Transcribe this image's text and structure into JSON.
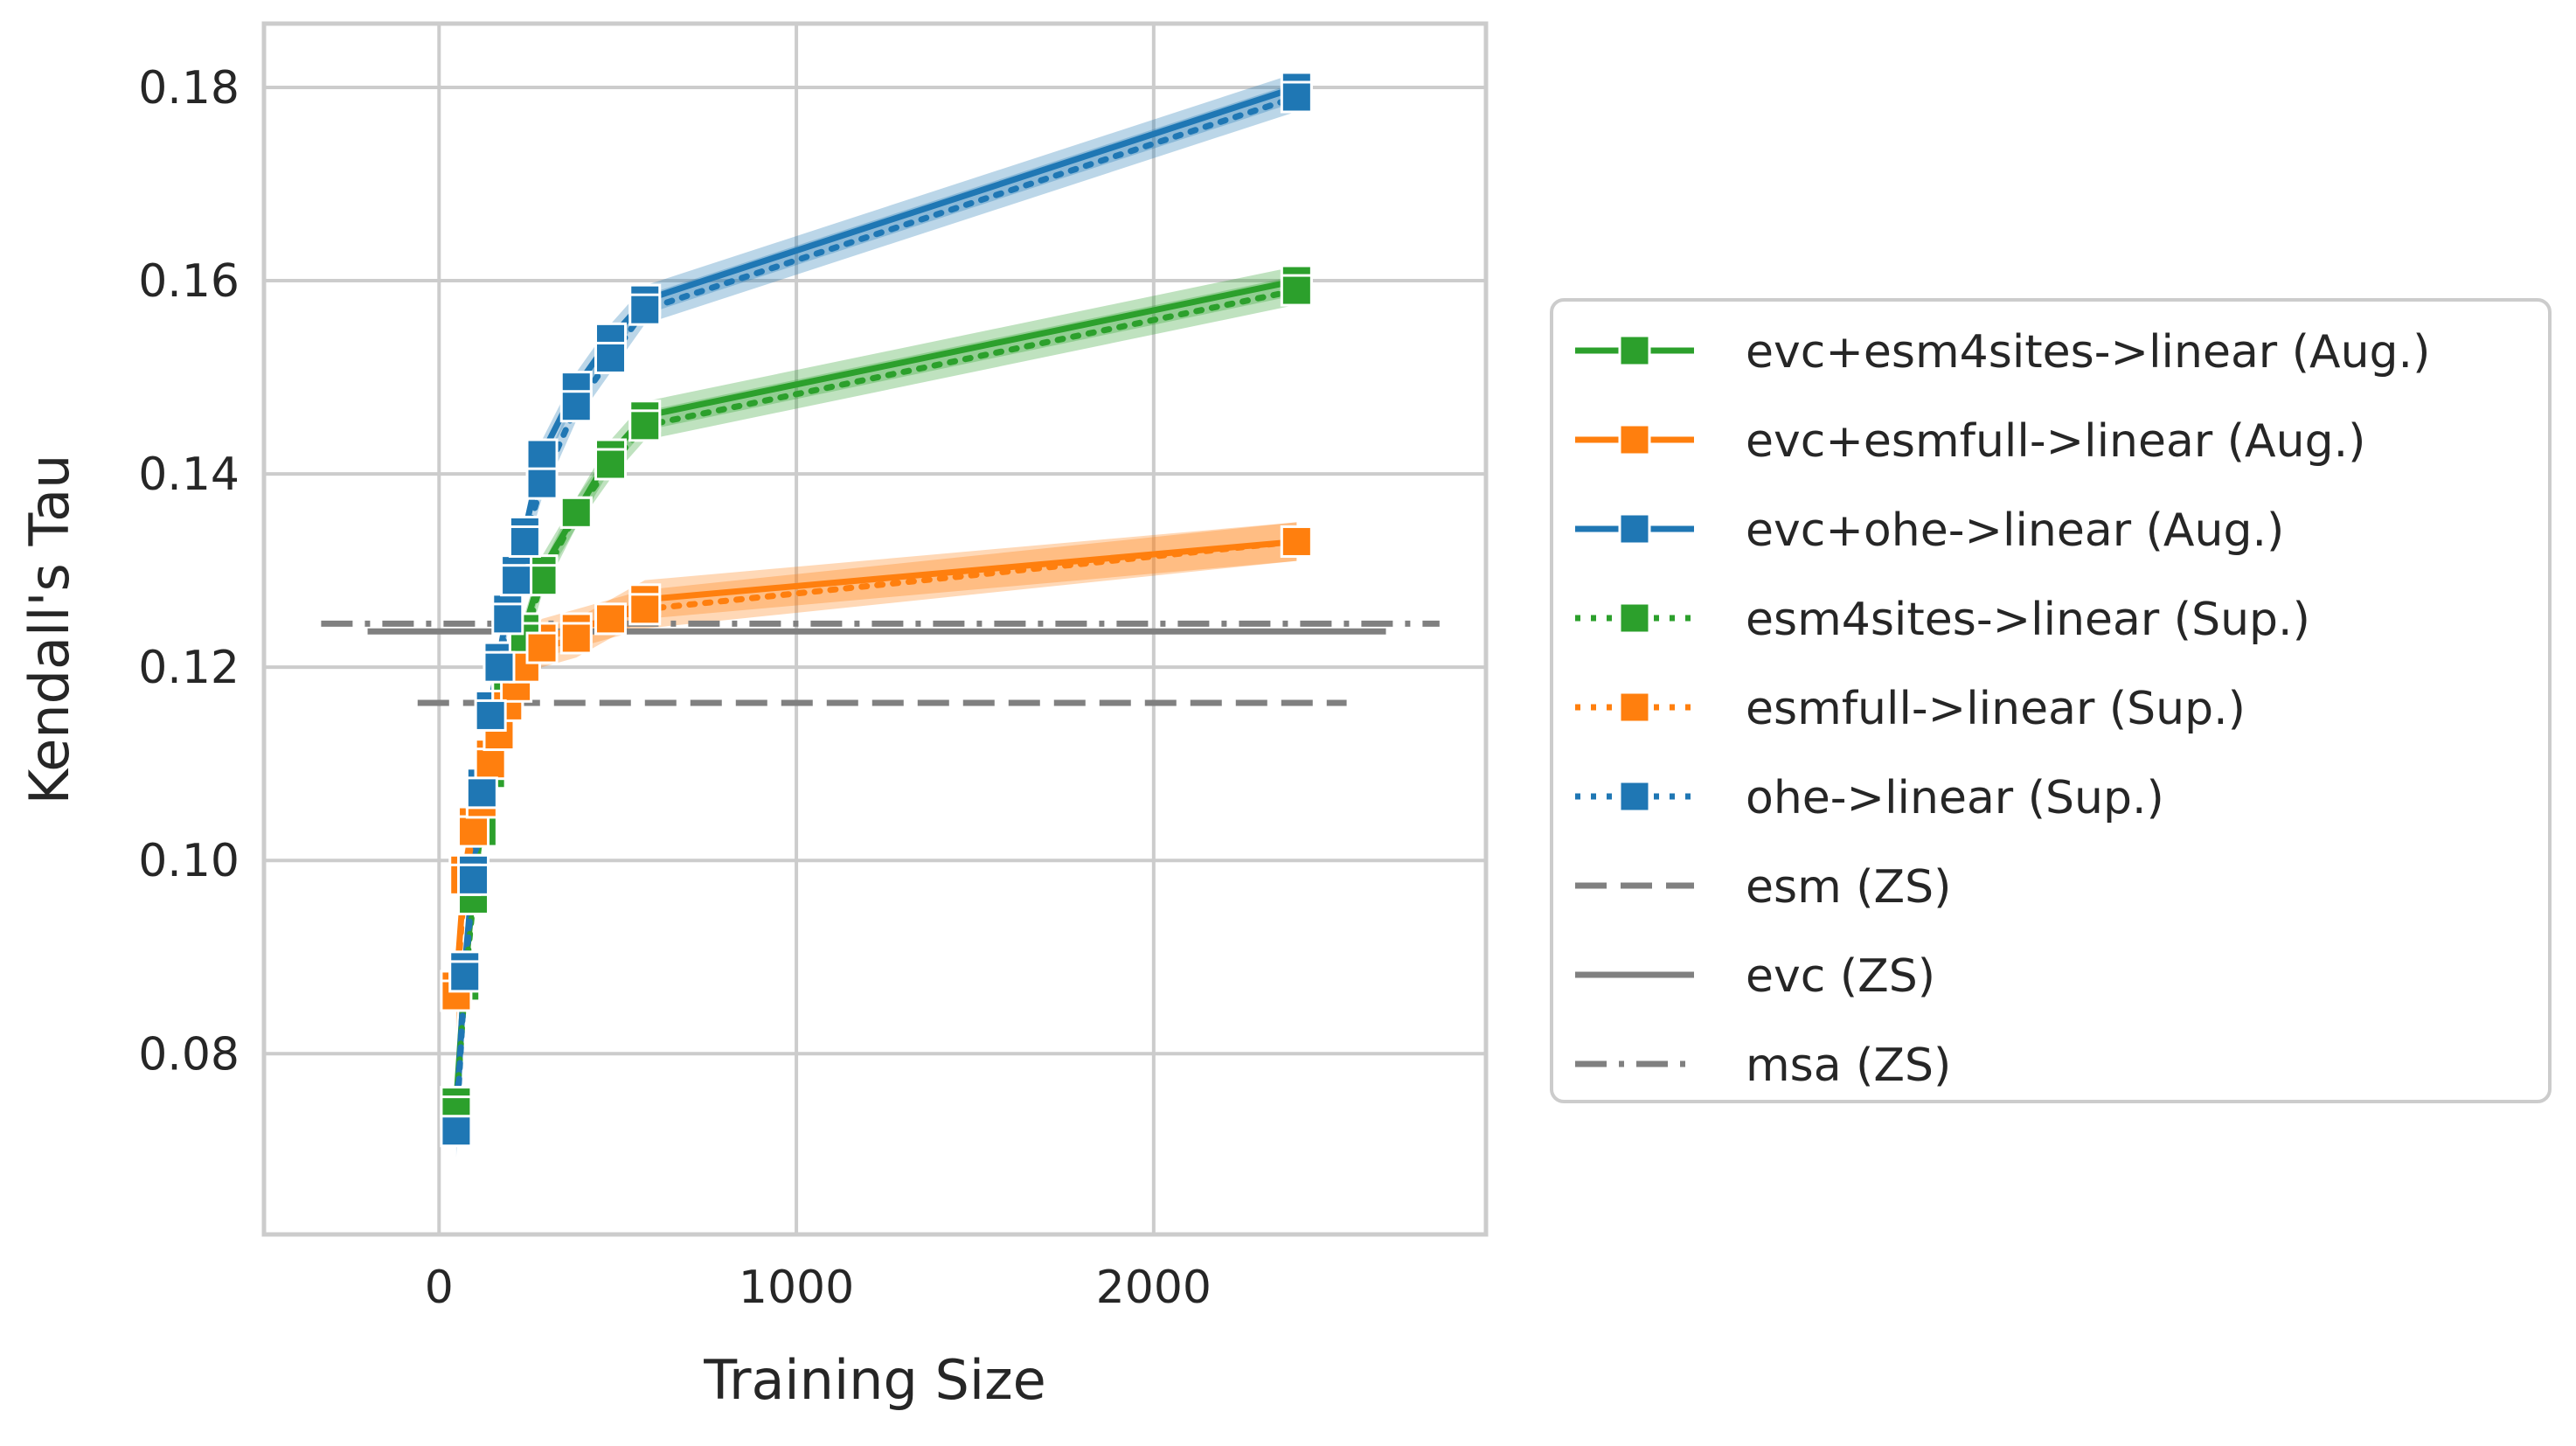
{
  "chart_data": {
    "type": "line",
    "title": "",
    "xlabel": "Training Size",
    "ylabel": "Kendall's Tau",
    "xlim": [
      -490,
      2930
    ],
    "ylim": [
      0.0613,
      0.1866
    ],
    "xticks": [
      0,
      1000,
      2000
    ],
    "yticks": [
      0.08,
      0.1,
      0.12,
      0.14,
      0.16,
      0.18
    ],
    "ytick_labels": [
      "0.08",
      "0.10",
      "0.12",
      "0.14",
      "0.16",
      "0.18"
    ],
    "grid": true,
    "legend_position": "outside-right",
    "series": [
      {
        "name": "evc+esm4sites->linear (Aug.)",
        "color": "#2ca02c",
        "linestyle": "solid",
        "marker": "square",
        "x": [
          48,
          72,
          96,
          120,
          144,
          168,
          192,
          216,
          240,
          288,
          384,
          480,
          576,
          2400
        ],
        "y": [
          0.075,
          0.088,
          0.097,
          0.104,
          0.11,
          0.114,
          0.118,
          0.121,
          0.124,
          0.13,
          0.136,
          0.142,
          0.146,
          0.16
        ],
        "band": 0.0015
      },
      {
        "name": "evc+esmfull->linear (Aug.)",
        "color": "#ff7f0e",
        "linestyle": "solid",
        "marker": "square",
        "x": [
          48,
          72,
          96,
          120,
          144,
          168,
          192,
          216,
          240,
          288,
          384,
          480,
          576,
          2400
        ],
        "y": [
          0.087,
          0.099,
          0.104,
          0.107,
          0.111,
          0.114,
          0.117,
          0.119,
          0.121,
          0.123,
          0.124,
          0.125,
          0.127,
          0.133
        ],
        "band": 0.002
      },
      {
        "name": "evc+ohe->linear (Aug.)",
        "color": "#1f77b4",
        "linestyle": "solid",
        "marker": "square",
        "x": [
          48,
          72,
          96,
          120,
          144,
          168,
          192,
          216,
          240,
          288,
          384,
          480,
          576,
          2400
        ],
        "y": [
          0.073,
          0.089,
          0.099,
          0.108,
          0.116,
          0.121,
          0.126,
          0.13,
          0.134,
          0.142,
          0.149,
          0.154,
          0.158,
          0.18
        ],
        "band": 0.0015
      },
      {
        "name": "esm4sites->linear (Sup.)",
        "color": "#2ca02c",
        "linestyle": "dotted",
        "marker": "square",
        "x": [
          48,
          72,
          96,
          120,
          144,
          168,
          192,
          216,
          240,
          288,
          384,
          480,
          576,
          2400
        ],
        "y": [
          0.074,
          0.087,
          0.096,
          0.103,
          0.109,
          0.113,
          0.117,
          0.12,
          0.123,
          0.129,
          0.136,
          0.141,
          0.145,
          0.159
        ],
        "band": 0.0015
      },
      {
        "name": "esmfull->linear (Sup.)",
        "color": "#ff7f0e",
        "linestyle": "dotted",
        "marker": "square",
        "x": [
          48,
          72,
          96,
          120,
          144,
          168,
          192,
          216,
          240,
          288,
          384,
          480,
          576,
          2400
        ],
        "y": [
          0.086,
          0.098,
          0.103,
          0.106,
          0.11,
          0.113,
          0.116,
          0.118,
          0.12,
          0.122,
          0.123,
          0.125,
          0.126,
          0.133
        ],
        "band": 0.002
      },
      {
        "name": "ohe->linear (Sup.)",
        "color": "#1f77b4",
        "linestyle": "dotted",
        "marker": "square",
        "x": [
          48,
          72,
          96,
          120,
          144,
          168,
          192,
          216,
          240,
          288,
          384,
          480,
          576,
          2400
        ],
        "y": [
          0.072,
          0.088,
          0.098,
          0.107,
          0.115,
          0.12,
          0.125,
          0.129,
          0.133,
          0.139,
          0.147,
          0.152,
          0.157,
          0.179
        ],
        "band": 0.0015
      }
    ],
    "reference_lines": [
      {
        "name": "esm (ZS)",
        "color": "#808080",
        "linestyle": "dashed",
        "y": 0.1163,
        "x_range": [
          -60,
          2540
        ]
      },
      {
        "name": "evc (ZS)",
        "color": "#808080",
        "linestyle": "solid",
        "y": 0.1237,
        "x_range": [
          -200,
          2650
        ]
      },
      {
        "name": "msa (ZS)",
        "color": "#808080",
        "linestyle": "dashdot",
        "y": 0.1245,
        "x_range": [
          -330,
          2800
        ]
      }
    ]
  }
}
